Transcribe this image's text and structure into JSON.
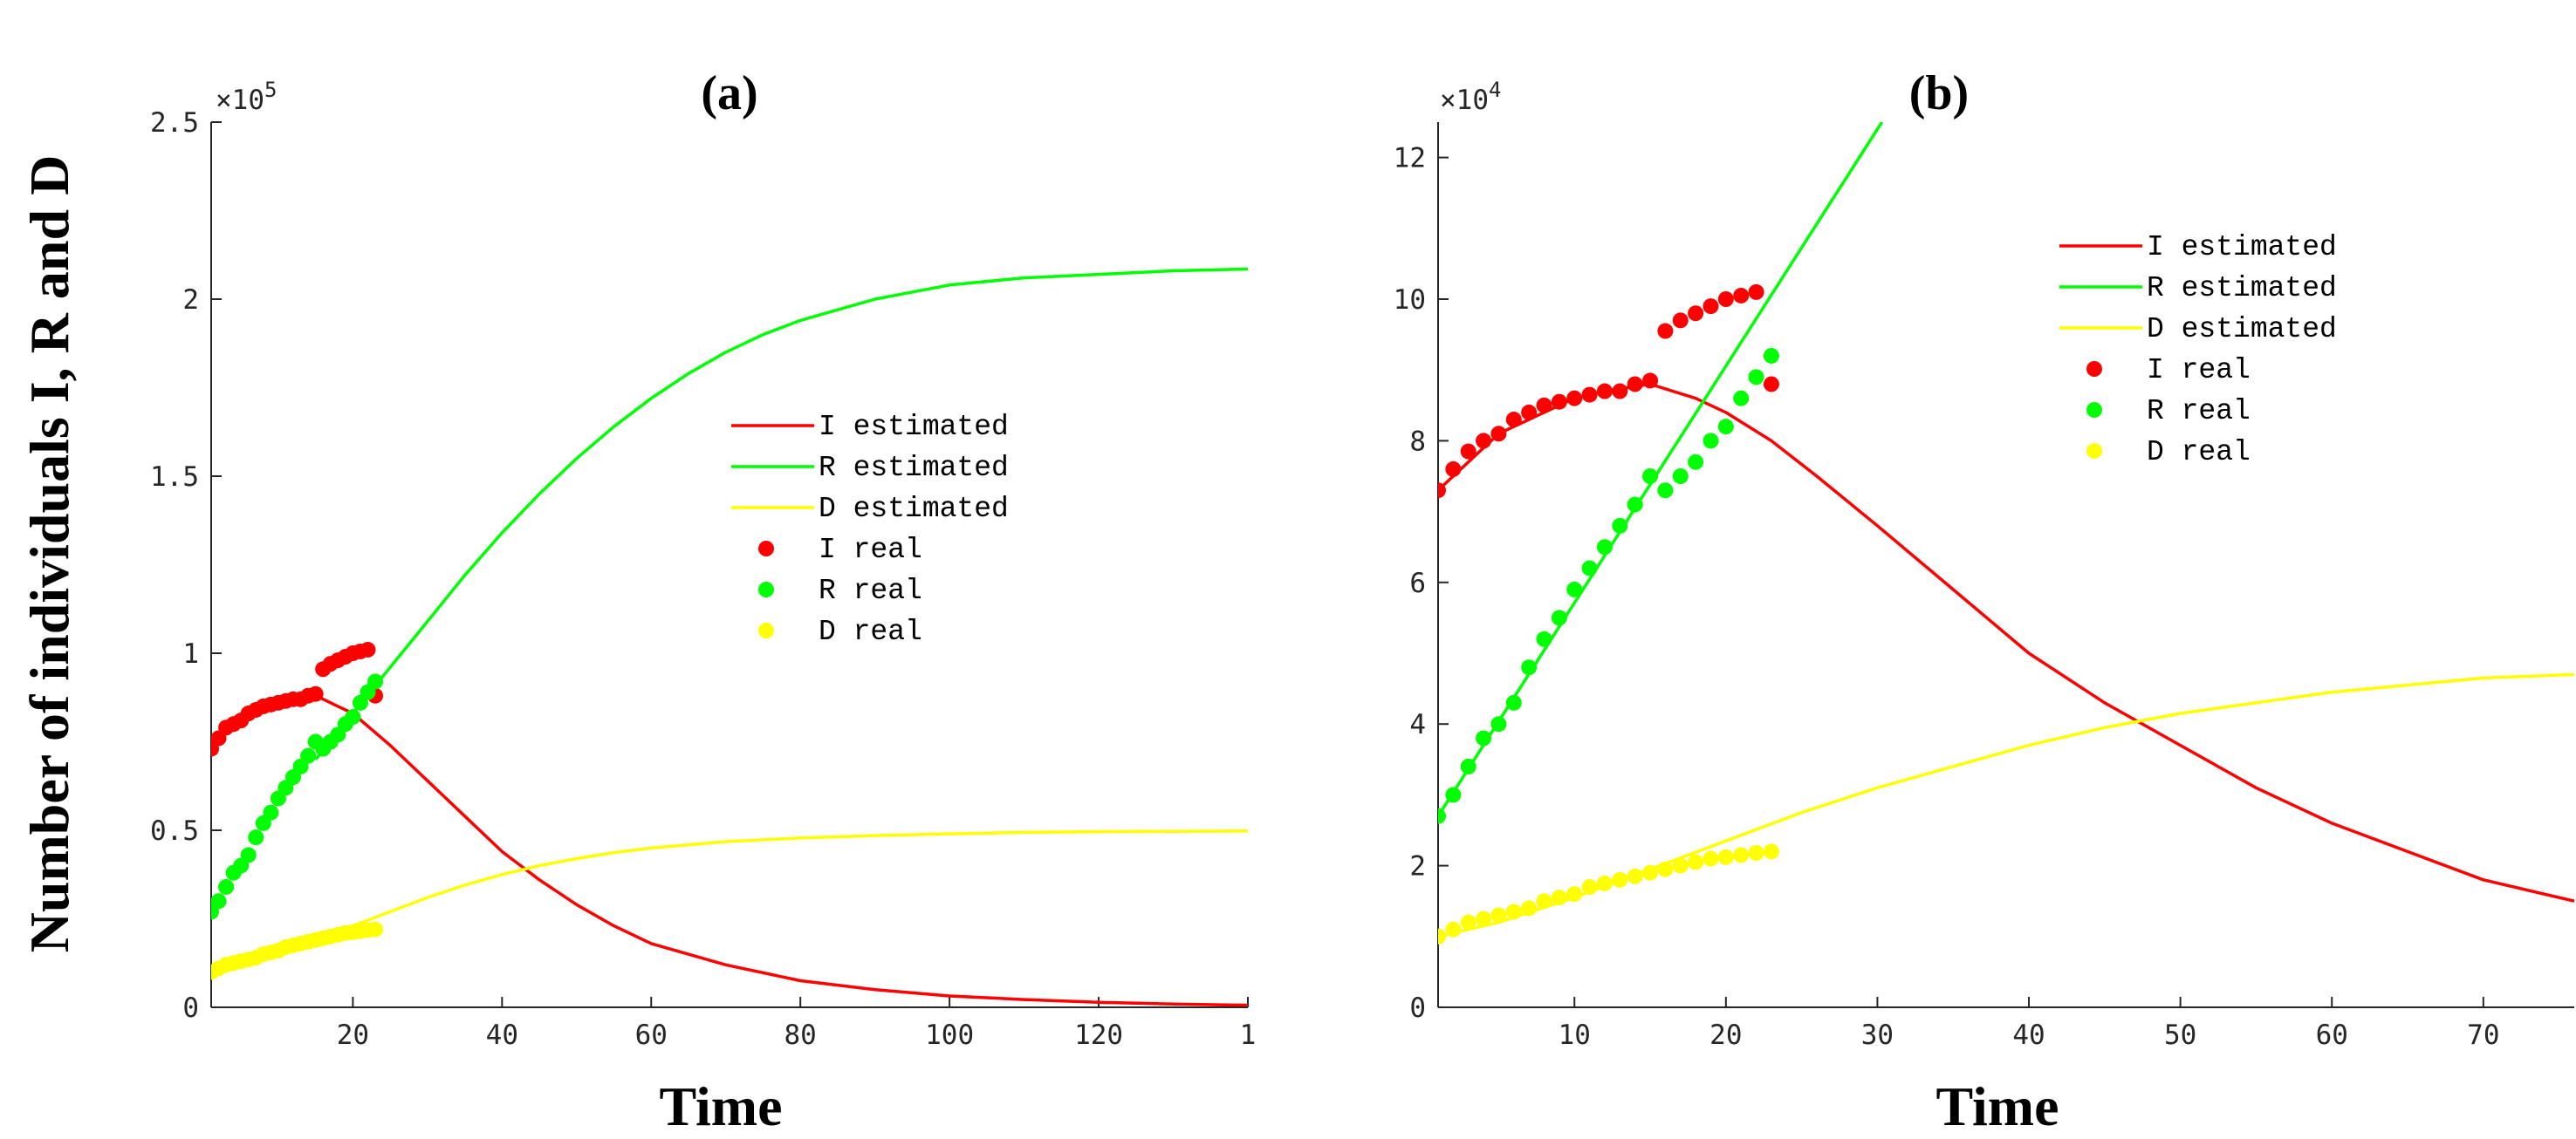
{
  "ylabel": "Number of individuals I, R and D",
  "colors": {
    "I": "#ff0000",
    "R": "#00ff00",
    "D": "#ffff00"
  },
  "chart_data": [
    {
      "type": "line",
      "title": "(a)",
      "xlabel": "Time",
      "ylabel": "Number of individuals I, R and D",
      "xlim": [
        1,
        140
      ],
      "ylim": [
        0,
        2.5
      ],
      "y_exponent": "×10^5",
      "xticks": [
        "20",
        "40",
        "60",
        "80",
        "100",
        "120",
        "1"
      ],
      "yticks": [
        "0",
        "0.5",
        "1",
        "1.5",
        "2",
        "2.5"
      ],
      "legend_placement": "center-right",
      "legend": [
        "I estimated",
        "R estimated",
        "D estimated",
        "I real",
        "R real",
        "D real"
      ],
      "series": [
        {
          "name": "I estimated",
          "kind": "line",
          "x": [
            15,
            20,
            25,
            30,
            35,
            40,
            45,
            50,
            55,
            60,
            70,
            80,
            90,
            100,
            110,
            120,
            130,
            140
          ],
          "y": [
            0.88,
            0.83,
            0.74,
            0.64,
            0.54,
            0.44,
            0.36,
            0.29,
            0.23,
            0.18,
            0.12,
            0.075,
            0.05,
            0.032,
            0.022,
            0.014,
            0.009,
            0.006
          ]
        },
        {
          "name": "R estimated",
          "kind": "line",
          "x": [
            15,
            20,
            25,
            30,
            35,
            40,
            45,
            50,
            55,
            60,
            65,
            70,
            75,
            80,
            90,
            100,
            110,
            120,
            130,
            140
          ],
          "y": [
            0.7,
            0.83,
            0.96,
            1.09,
            1.22,
            1.34,
            1.45,
            1.55,
            1.64,
            1.72,
            1.79,
            1.85,
            1.9,
            1.94,
            2.0,
            2.04,
            2.06,
            2.07,
            2.08,
            2.085
          ]
        },
        {
          "name": "D estimated",
          "kind": "line",
          "x": [
            15,
            20,
            25,
            30,
            35,
            40,
            45,
            50,
            55,
            60,
            70,
            80,
            90,
            100,
            110,
            120,
            130,
            140
          ],
          "y": [
            0.2,
            0.23,
            0.27,
            0.31,
            0.345,
            0.375,
            0.4,
            0.42,
            0.437,
            0.45,
            0.468,
            0.478,
            0.485,
            0.49,
            0.494,
            0.496,
            0.497,
            0.498
          ]
        },
        {
          "name": "I real",
          "kind": "scatter",
          "x": [
            1,
            2,
            3,
            4,
            5,
            6,
            7,
            8,
            9,
            10,
            11,
            12,
            13,
            14,
            15,
            16,
            17,
            18,
            19,
            20,
            21,
            22,
            23
          ],
          "y": [
            0.73,
            0.76,
            0.79,
            0.8,
            0.81,
            0.83,
            0.84,
            0.85,
            0.855,
            0.86,
            0.865,
            0.87,
            0.87,
            0.88,
            0.885,
            0.955,
            0.97,
            0.98,
            0.99,
            1.0,
            1.005,
            1.01,
            0.88
          ]
        },
        {
          "name": "R real",
          "kind": "scatter",
          "x": [
            1,
            2,
            3,
            4,
            5,
            6,
            7,
            8,
            9,
            10,
            11,
            12,
            13,
            14,
            15,
            16,
            17,
            18,
            19,
            20,
            21,
            22,
            23
          ],
          "y": [
            0.27,
            0.3,
            0.34,
            0.38,
            0.4,
            0.43,
            0.48,
            0.52,
            0.55,
            0.59,
            0.62,
            0.65,
            0.68,
            0.71,
            0.75,
            0.73,
            0.75,
            0.77,
            0.8,
            0.82,
            0.86,
            0.89,
            0.92
          ]
        },
        {
          "name": "D real",
          "kind": "scatter",
          "x": [
            1,
            2,
            3,
            4,
            5,
            6,
            7,
            8,
            9,
            10,
            11,
            12,
            13,
            14,
            15,
            16,
            17,
            18,
            19,
            20,
            21,
            22,
            23
          ],
          "y": [
            0.1,
            0.11,
            0.12,
            0.125,
            0.13,
            0.135,
            0.14,
            0.15,
            0.155,
            0.16,
            0.17,
            0.175,
            0.18,
            0.185,
            0.19,
            0.195,
            0.2,
            0.205,
            0.21,
            0.212,
            0.215,
            0.218,
            0.22
          ]
        }
      ]
    },
    {
      "type": "line",
      "title": "(b)",
      "xlabel": "Time",
      "ylabel": "",
      "xlim": [
        1,
        76
      ],
      "ylim": [
        0,
        12.5
      ],
      "y_exponent": "×10^4",
      "xticks": [
        "10",
        "20",
        "30",
        "40",
        "50",
        "60",
        "70"
      ],
      "yticks": [
        "0",
        "2",
        "4",
        "6",
        "8",
        "10",
        "12"
      ],
      "legend_placement": "top-right",
      "legend": [
        "I estimated",
        "R estimated",
        "D estimated",
        "I real",
        "R real",
        "D real"
      ],
      "series": [
        {
          "name": "I estimated",
          "kind": "line",
          "x": [
            1,
            5,
            10,
            12,
            15,
            18,
            20,
            23,
            26,
            30,
            35,
            40,
            45,
            50,
            55,
            60,
            65,
            70,
            76
          ],
          "y": [
            7.3,
            8.1,
            8.6,
            8.7,
            8.8,
            8.6,
            8.4,
            8.0,
            7.5,
            6.8,
            5.9,
            5.0,
            4.3,
            3.7,
            3.1,
            2.6,
            2.2,
            1.8,
            1.5
          ]
        },
        {
          "name": "R estimated",
          "kind": "line",
          "x": [
            1,
            30.3
          ],
          "y": [
            2.7,
            12.5
          ]
        },
        {
          "name": "D estimated",
          "kind": "line",
          "x": [
            1,
            5,
            10,
            15,
            20,
            25,
            30,
            35,
            40,
            45,
            50,
            55,
            60,
            65,
            70,
            76
          ],
          "y": [
            1.0,
            1.2,
            1.55,
            1.95,
            2.35,
            2.75,
            3.1,
            3.4,
            3.7,
            3.95,
            4.15,
            4.3,
            4.45,
            4.55,
            4.65,
            4.7
          ]
        },
        {
          "name": "I real",
          "kind": "scatter",
          "x": [
            1,
            2,
            3,
            4,
            5,
            6,
            7,
            8,
            9,
            10,
            11,
            12,
            13,
            14,
            15,
            16,
            17,
            18,
            19,
            20,
            21,
            22,
            23
          ],
          "y": [
            7.3,
            7.6,
            7.85,
            8.0,
            8.1,
            8.3,
            8.4,
            8.5,
            8.55,
            8.6,
            8.65,
            8.7,
            8.7,
            8.8,
            8.85,
            9.55,
            9.7,
            9.8,
            9.9,
            10.0,
            10.05,
            10.1,
            8.8
          ]
        },
        {
          "name": "R real",
          "kind": "scatter",
          "x": [
            1,
            2,
            3,
            4,
            5,
            6,
            7,
            8,
            9,
            10,
            11,
            12,
            13,
            14,
            15,
            16,
            17,
            18,
            19,
            20,
            21,
            22,
            23
          ],
          "y": [
            2.7,
            3.0,
            3.4,
            3.8,
            4.0,
            4.3,
            4.8,
            5.2,
            5.5,
            5.9,
            6.2,
            6.5,
            6.8,
            7.1,
            7.5,
            7.3,
            7.5,
            7.7,
            8.0,
            8.2,
            8.6,
            8.9,
            9.2
          ]
        },
        {
          "name": "D real",
          "kind": "scatter",
          "x": [
            1,
            2,
            3,
            4,
            5,
            6,
            7,
            8,
            9,
            10,
            11,
            12,
            13,
            14,
            15,
            16,
            17,
            18,
            19,
            20,
            21,
            22,
            23
          ],
          "y": [
            1.0,
            1.1,
            1.2,
            1.25,
            1.3,
            1.35,
            1.4,
            1.5,
            1.55,
            1.6,
            1.7,
            1.75,
            1.8,
            1.85,
            1.9,
            1.95,
            2.0,
            2.05,
            2.1,
            2.12,
            2.15,
            2.18,
            2.2
          ]
        }
      ]
    }
  ]
}
